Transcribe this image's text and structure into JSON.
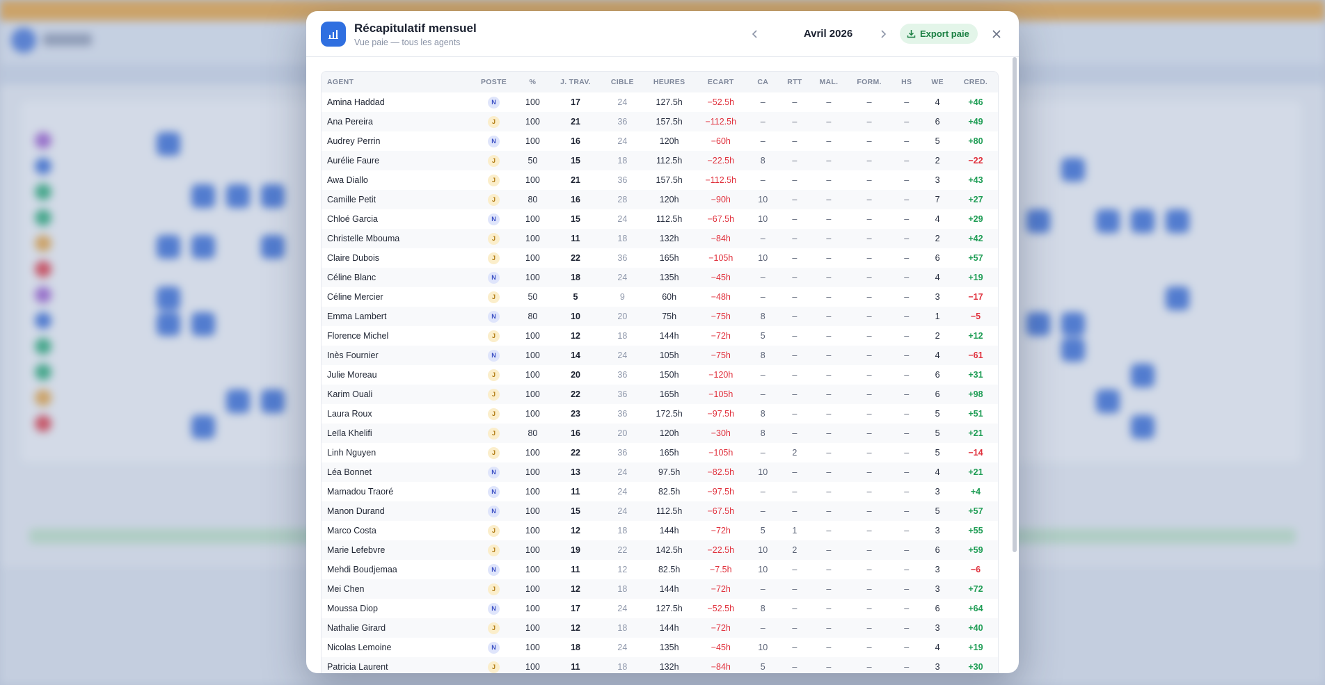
{
  "header": {
    "title": "Récapitulatif mensuel",
    "subtitle": "Vue paie — tous les agents",
    "month": "Avril 2026",
    "export_label": "Export paie"
  },
  "table": {
    "columns": [
      "AGENT",
      "POSTE",
      "%",
      "J. TRAV.",
      "CIBLE",
      "HEURES",
      "ECART",
      "CA",
      "RTT",
      "MAL.",
      "FORM.",
      "HS",
      "WE",
      "CRED."
    ],
    "rows": [
      [
        "Amina Haddad",
        "N",
        "100",
        "17",
        "24",
        "127.5h",
        "−52.5h",
        "–",
        "–",
        "–",
        "–",
        "–",
        "4",
        "+46"
      ],
      [
        "Ana Pereira",
        "J",
        "100",
        "21",
        "36",
        "157.5h",
        "−112.5h",
        "–",
        "–",
        "–",
        "–",
        "–",
        "6",
        "+49"
      ],
      [
        "Audrey Perrin",
        "N",
        "100",
        "16",
        "24",
        "120h",
        "−60h",
        "–",
        "–",
        "–",
        "–",
        "–",
        "5",
        "+80"
      ],
      [
        "Aurélie Faure",
        "J",
        "50",
        "15",
        "18",
        "112.5h",
        "−22.5h",
        "8",
        "–",
        "–",
        "–",
        "–",
        "2",
        "−22"
      ],
      [
        "Awa Diallo",
        "J",
        "100",
        "21",
        "36",
        "157.5h",
        "−112.5h",
        "–",
        "–",
        "–",
        "–",
        "–",
        "3",
        "+43"
      ],
      [
        "Camille Petit",
        "J",
        "80",
        "16",
        "28",
        "120h",
        "−90h",
        "10",
        "–",
        "–",
        "–",
        "–",
        "7",
        "+27"
      ],
      [
        "Chloé Garcia",
        "N",
        "100",
        "15",
        "24",
        "112.5h",
        "−67.5h",
        "10",
        "–",
        "–",
        "–",
        "–",
        "4",
        "+29"
      ],
      [
        "Christelle Mbouma",
        "J",
        "100",
        "11",
        "18",
        "132h",
        "−84h",
        "–",
        "–",
        "–",
        "–",
        "–",
        "2",
        "+42"
      ],
      [
        "Claire Dubois",
        "J",
        "100",
        "22",
        "36",
        "165h",
        "−105h",
        "10",
        "–",
        "–",
        "–",
        "–",
        "6",
        "+57"
      ],
      [
        "Céline Blanc",
        "N",
        "100",
        "18",
        "24",
        "135h",
        "−45h",
        "–",
        "–",
        "–",
        "–",
        "–",
        "4",
        "+19"
      ],
      [
        "Céline Mercier",
        "J",
        "50",
        "5",
        "9",
        "60h",
        "−48h",
        "–",
        "–",
        "–",
        "–",
        "–",
        "3",
        "−17"
      ],
      [
        "Emma Lambert",
        "N",
        "80",
        "10",
        "20",
        "75h",
        "−75h",
        "8",
        "–",
        "–",
        "–",
        "–",
        "1",
        "−5"
      ],
      [
        "Florence Michel",
        "J",
        "100",
        "12",
        "18",
        "144h",
        "−72h",
        "5",
        "–",
        "–",
        "–",
        "–",
        "2",
        "+12"
      ],
      [
        "Inès Fournier",
        "N",
        "100",
        "14",
        "24",
        "105h",
        "−75h",
        "8",
        "–",
        "–",
        "–",
        "–",
        "4",
        "−61"
      ],
      [
        "Julie Moreau",
        "J",
        "100",
        "20",
        "36",
        "150h",
        "−120h",
        "–",
        "–",
        "–",
        "–",
        "–",
        "6",
        "+31"
      ],
      [
        "Karim Ouali",
        "J",
        "100",
        "22",
        "36",
        "165h",
        "−105h",
        "–",
        "–",
        "–",
        "–",
        "–",
        "6",
        "+98"
      ],
      [
        "Laura Roux",
        "J",
        "100",
        "23",
        "36",
        "172.5h",
        "−97.5h",
        "8",
        "–",
        "–",
        "–",
        "–",
        "5",
        "+51"
      ],
      [
        "Leïla Khelifi",
        "J",
        "80",
        "16",
        "20",
        "120h",
        "−30h",
        "8",
        "–",
        "–",
        "–",
        "–",
        "5",
        "+21"
      ],
      [
        "Linh Nguyen",
        "J",
        "100",
        "22",
        "36",
        "165h",
        "−105h",
        "–",
        "2",
        "–",
        "–",
        "–",
        "5",
        "−14"
      ],
      [
        "Léa Bonnet",
        "N",
        "100",
        "13",
        "24",
        "97.5h",
        "−82.5h",
        "10",
        "–",
        "–",
        "–",
        "–",
        "4",
        "+21"
      ],
      [
        "Mamadou Traoré",
        "N",
        "100",
        "11",
        "24",
        "82.5h",
        "−97.5h",
        "–",
        "–",
        "–",
        "–",
        "–",
        "3",
        "+4"
      ],
      [
        "Manon Durand",
        "N",
        "100",
        "15",
        "24",
        "112.5h",
        "−67.5h",
        "–",
        "–",
        "–",
        "–",
        "–",
        "5",
        "+57"
      ],
      [
        "Marco Costa",
        "J",
        "100",
        "12",
        "18",
        "144h",
        "−72h",
        "5",
        "1",
        "–",
        "–",
        "–",
        "3",
        "+55"
      ],
      [
        "Marie Lefebvre",
        "J",
        "100",
        "19",
        "22",
        "142.5h",
        "−22.5h",
        "10",
        "2",
        "–",
        "–",
        "–",
        "6",
        "+59"
      ],
      [
        "Mehdi Boudjemaa",
        "N",
        "100",
        "11",
        "12",
        "82.5h",
        "−7.5h",
        "10",
        "–",
        "–",
        "–",
        "–",
        "3",
        "−6"
      ],
      [
        "Mei Chen",
        "J",
        "100",
        "12",
        "18",
        "144h",
        "−72h",
        "–",
        "–",
        "–",
        "–",
        "–",
        "3",
        "+72"
      ],
      [
        "Moussa Diop",
        "N",
        "100",
        "17",
        "24",
        "127.5h",
        "−52.5h",
        "8",
        "–",
        "–",
        "–",
        "–",
        "6",
        "+64"
      ],
      [
        "Nathalie Girard",
        "J",
        "100",
        "12",
        "18",
        "144h",
        "−72h",
        "–",
        "–",
        "–",
        "–",
        "–",
        "3",
        "+40"
      ],
      [
        "Nicolas Lemoine",
        "N",
        "100",
        "18",
        "24",
        "135h",
        "−45h",
        "10",
        "–",
        "–",
        "–",
        "–",
        "4",
        "+19"
      ],
      [
        "Patricia Laurent",
        "J",
        "100",
        "11",
        "18",
        "132h",
        "−84h",
        "5",
        "–",
        "–",
        "–",
        "–",
        "3",
        "+30"
      ]
    ]
  },
  "colors": {
    "accent": "#2f6fe0",
    "positive": "#1f9d55",
    "negative": "#e0303c"
  }
}
